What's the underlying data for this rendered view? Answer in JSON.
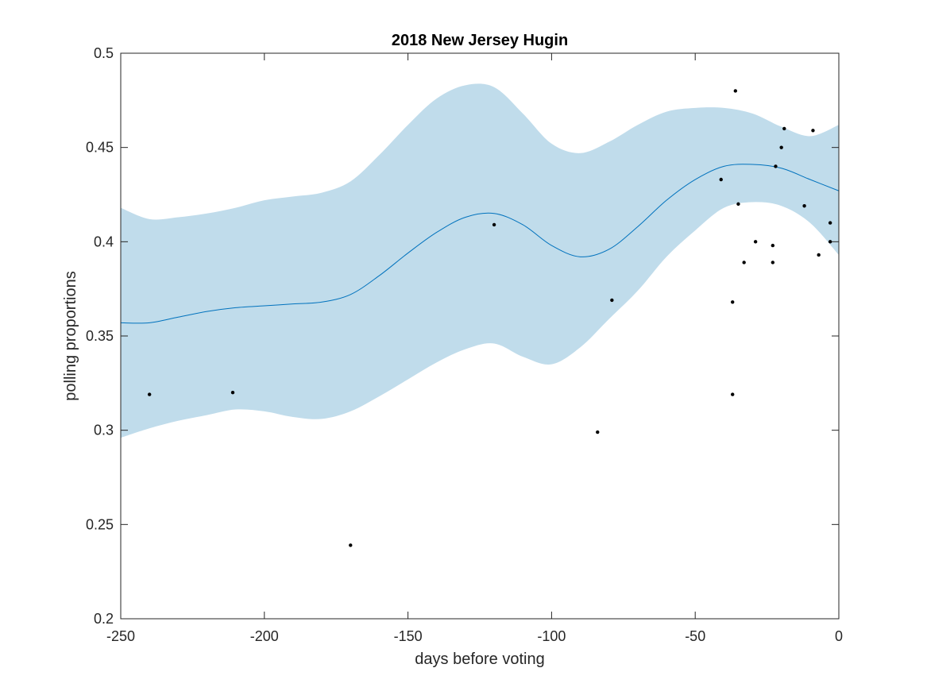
{
  "chart_data": {
    "type": "line",
    "title": "2018 New Jersey Hugin",
    "xlabel": "days before voting",
    "ylabel": "polling proportions",
    "xlim": [
      -250,
      0
    ],
    "ylim": [
      0.2,
      0.5
    ],
    "xticks": [
      -250,
      -200,
      -150,
      -100,
      -50,
      0
    ],
    "xtick_labels": [
      "-250",
      "-200",
      "-150",
      "-100",
      "-50",
      "0"
    ],
    "yticks": [
      0.2,
      0.25,
      0.3,
      0.35,
      0.4,
      0.45,
      0.5
    ],
    "ytick_labels": [
      "0.2",
      "0.25",
      "0.3",
      "0.35",
      "0.4",
      "0.45",
      "0.5"
    ],
    "grid": false,
    "colors": {
      "band": "#c0dceb",
      "line": "#0072bd",
      "points": "#000000",
      "axis": "#262626"
    },
    "trend": {
      "x": [
        -250,
        -240,
        -230,
        -220,
        -210,
        -200,
        -190,
        -180,
        -170,
        -160,
        -150,
        -140,
        -130,
        -120,
        -110,
        -100,
        -90,
        -80,
        -70,
        -60,
        -50,
        -40,
        -30,
        -20,
        -10,
        0
      ],
      "y": [
        0.357,
        0.357,
        0.36,
        0.363,
        0.365,
        0.366,
        0.367,
        0.368,
        0.372,
        0.382,
        0.394,
        0.405,
        0.413,
        0.415,
        0.409,
        0.398,
        0.392,
        0.396,
        0.408,
        0.422,
        0.433,
        0.44,
        0.441,
        0.439,
        0.433,
        0.427
      ]
    },
    "band": {
      "x": [
        -250,
        -240,
        -230,
        -220,
        -210,
        -200,
        -190,
        -180,
        -170,
        -160,
        -150,
        -140,
        -130,
        -120,
        -110,
        -100,
        -90,
        -80,
        -70,
        -60,
        -50,
        -40,
        -30,
        -20,
        -10,
        0
      ],
      "upper": [
        0.418,
        0.412,
        0.413,
        0.415,
        0.418,
        0.422,
        0.424,
        0.426,
        0.432,
        0.446,
        0.462,
        0.476,
        0.483,
        0.482,
        0.468,
        0.452,
        0.447,
        0.453,
        0.462,
        0.469,
        0.471,
        0.471,
        0.468,
        0.461,
        0.456,
        0.462
      ],
      "lower": [
        0.296,
        0.301,
        0.305,
        0.308,
        0.311,
        0.31,
        0.307,
        0.306,
        0.31,
        0.318,
        0.327,
        0.336,
        0.343,
        0.346,
        0.339,
        0.335,
        0.344,
        0.359,
        0.374,
        0.392,
        0.406,
        0.418,
        0.421,
        0.419,
        0.41,
        0.393
      ]
    },
    "points": {
      "x": [
        -240,
        -211,
        -170,
        -120,
        -84,
        -79,
        -41,
        -37,
        -37,
        -36,
        -35,
        -33,
        -29,
        -23,
        -23,
        -22,
        -20,
        -19,
        -12,
        -9,
        -7,
        -3,
        -3
      ],
      "y": [
        0.319,
        0.32,
        0.239,
        0.409,
        0.299,
        0.369,
        0.433,
        0.368,
        0.319,
        0.48,
        0.42,
        0.389,
        0.4,
        0.398,
        0.389,
        0.44,
        0.45,
        0.46,
        0.419,
        0.459,
        0.393,
        0.41,
        0.4
      ]
    }
  }
}
